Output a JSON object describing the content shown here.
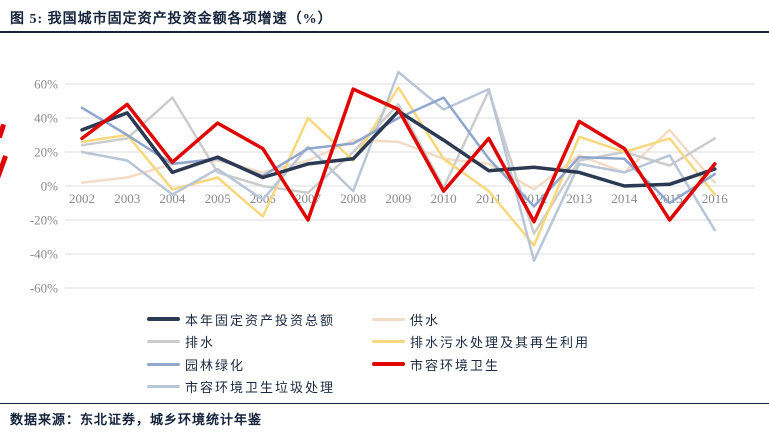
{
  "title": "图 5: 我国城市固定资产投资金额各项增速（%）",
  "source": "数据来源：东北证券，城乡环境统计年鉴",
  "chart_data": {
    "type": "line",
    "x": [
      "2002",
      "2003",
      "2004",
      "2005",
      "2006",
      "2007",
      "2008",
      "2009",
      "2010",
      "2011",
      "2012",
      "2013",
      "2014",
      "2015",
      "2016"
    ],
    "yticks": [
      60,
      40,
      20,
      0,
      -20,
      -40,
      -60
    ],
    "ylim": [
      -60,
      70
    ],
    "grid": true,
    "grid_color": "#dcdcdc",
    "legend_position": "bottom",
    "draw_order": [
      1,
      2,
      3,
      6,
      4,
      0,
      5
    ],
    "series": [
      {
        "name": "本年固定资产投资总额",
        "color": "#2b3a52",
        "stroke_width": 3.5,
        "values": [
          33,
          43,
          8,
          17,
          5,
          13,
          16,
          44,
          27,
          9,
          11,
          8,
          0,
          1,
          10
        ]
      },
      {
        "name": "供水",
        "color": "#f2dcc6",
        "stroke_width": 2.5,
        "values": [
          2,
          5,
          13,
          15,
          8,
          15,
          27,
          26,
          16,
          13,
          -2,
          18,
          8,
          33,
          2
        ]
      },
      {
        "name": "排水",
        "color": "#cccccc",
        "stroke_width": 2.5,
        "values": [
          24,
          28,
          52,
          8,
          0,
          -4,
          20,
          48,
          -1,
          56,
          -28,
          15,
          20,
          12,
          28
        ]
      },
      {
        "name": "排水污水处理及其再生利用",
        "color": "#f7d87c",
        "stroke_width": 2.5,
        "values": [
          26,
          30,
          -2,
          5,
          -18,
          40,
          15,
          58,
          16,
          -3,
          -35,
          29,
          20,
          28,
          -5
        ]
      },
      {
        "name": "园林绿化",
        "color": "#90a6cd",
        "stroke_width": 2.5,
        "values": [
          46,
          30,
          13,
          16,
          6,
          22,
          25,
          40,
          52,
          16,
          -12,
          17,
          16,
          -10,
          7
        ]
      },
      {
        "name": "市容环境卫生",
        "color": "#df0503",
        "stroke_width": 3.5,
        "values": [
          28,
          48,
          14,
          37,
          22,
          -20,
          57,
          45,
          -3,
          28,
          -21,
          38,
          22,
          -20,
          13
        ]
      },
      {
        "name": "市容环境卫生垃圾处理",
        "color": "#b9c6d8",
        "stroke_width": 2.5,
        "values": [
          20,
          15,
          -5,
          10,
          -8,
          23,
          -3,
          67,
          45,
          57,
          -44,
          13,
          8,
          18,
          -26
        ]
      }
    ]
  }
}
